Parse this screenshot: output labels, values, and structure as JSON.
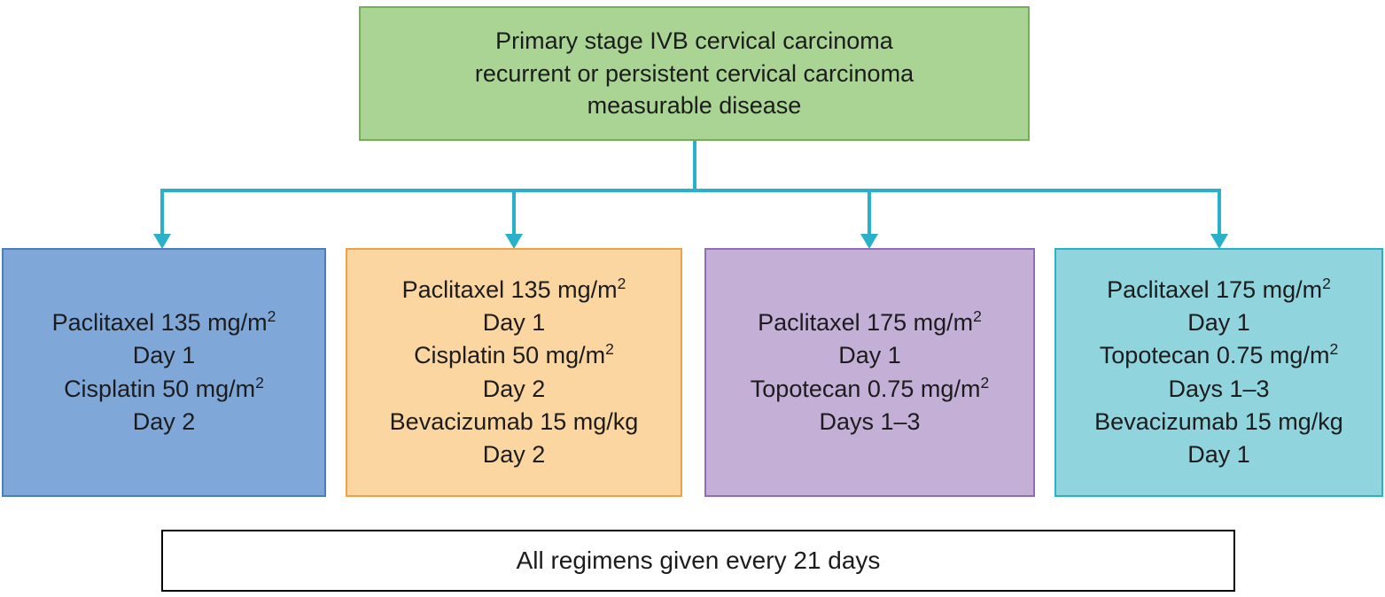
{
  "diagram": {
    "text_color": "#1c1c1c",
    "connector_color": "#29b1c9",
    "header": {
      "fill": "#a9d494",
      "border": "#74af55",
      "lines": [
        "Primary stage IVB cervical carcinoma",
        "recurrent or persistent cervical carcinoma",
        "measurable disease"
      ]
    },
    "regimens": [
      {
        "fill": "#7fa8d9",
        "border": "#4f7dbc",
        "lines": [
          "Paclitaxel 135 mg/m²",
          "Day 1",
          "Cisplatin 50 mg/m²",
          "Day 2"
        ]
      },
      {
        "fill": "#fcd6a0",
        "border": "#eda14c",
        "lines": [
          "Paclitaxel 135 mg/m²",
          "Day 1",
          "Cisplatin 50 mg/m²",
          "Day 2",
          "Bevacizumab 15 mg/kg",
          "Day 2"
        ]
      },
      {
        "fill": "#c4afd7",
        "border": "#8f6db4",
        "lines": [
          "Paclitaxel 175 mg/m²",
          "Day 1",
          "Topotecan 0.75 mg/m²",
          "Days 1–3"
        ]
      },
      {
        "fill": "#90d5de",
        "border": "#2cb0c4",
        "lines": [
          "Paclitaxel 175 mg/m²",
          "Day 1",
          "Topotecan 0.75 mg/m²",
          "Days 1–3",
          "Bevacizumab 15 mg/kg",
          "Day 1"
        ]
      }
    ],
    "footer": {
      "fill": "#ffffff",
      "border": "#000000",
      "text": "All regimens given every 21 days"
    }
  }
}
